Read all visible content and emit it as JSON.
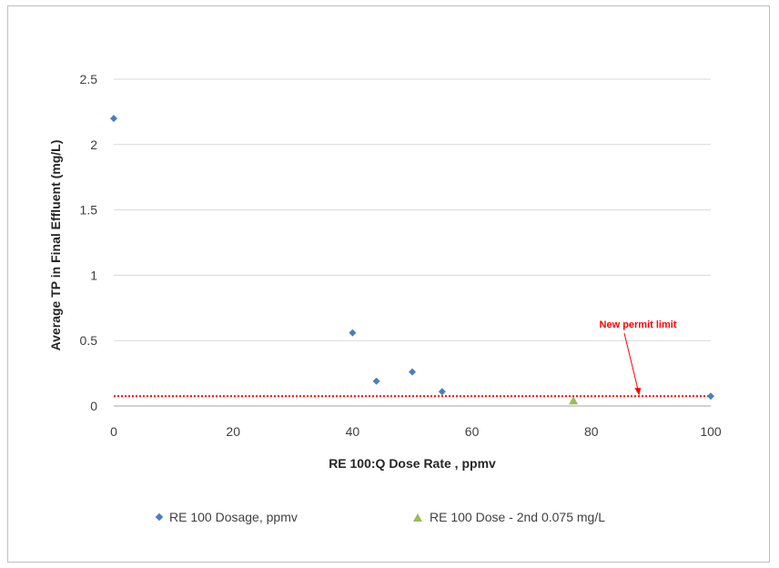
{
  "chart_data": {
    "type": "scatter",
    "title": "",
    "xlabel": "RE 100:Q Dose Rate , ppmv",
    "ylabel": "Average TP in Final Effluent (mg/L)",
    "xlim": [
      0,
      100
    ],
    "ylim": [
      0,
      2.5
    ],
    "x_ticks": [
      "0",
      "20",
      "40",
      "60",
      "80",
      "100"
    ],
    "y_ticks": [
      "0",
      "0.5",
      "1",
      "1.5",
      "2",
      "2.5"
    ],
    "grid": "horizontal",
    "legend_position": "bottom",
    "series": [
      {
        "name": "RE 100 Dosage, ppmv",
        "marker": "diamond",
        "color": "#4a7ebb",
        "points": [
          [
            0,
            2.2
          ],
          [
            40,
            0.56
          ],
          [
            44,
            0.19
          ],
          [
            50,
            0.26
          ],
          [
            55,
            0.11
          ],
          [
            100,
            0.075
          ]
        ]
      },
      {
        "name": "RE 100 Dose - 2nd 0.075 mg/L",
        "marker": "triangle",
        "color": "#9bbb59",
        "points": [
          [
            77,
            0.04
          ]
        ]
      }
    ],
    "reference_line": {
      "y": 0.075,
      "color": "#ff0000",
      "style": "dotted"
    },
    "annotation": {
      "text": "New permit limit",
      "color": "#ff0000",
      "arrow_to": [
        88,
        0.075
      ]
    }
  }
}
